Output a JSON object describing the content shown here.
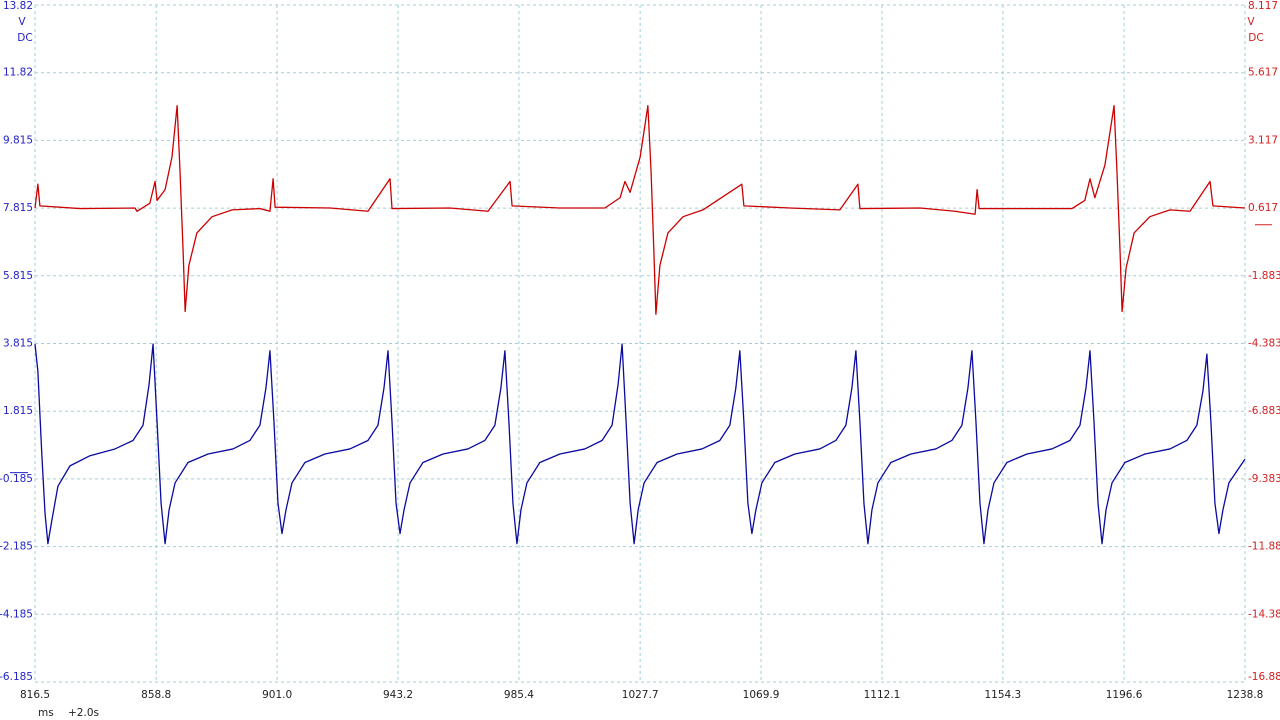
{
  "chart_data": {
    "type": "line",
    "y_unit": "V",
    "y_coupling": "DC",
    "y2_unit": "V",
    "y2_coupling": "DC",
    "x_unit": "ms",
    "x_offset": "+2.0s",
    "xlim": [
      816.5,
      1238.8
    ],
    "xticks": [
      816.5,
      858.8,
      {
        "value": 901,
        "label": "901.0"
      },
      943.2,
      985.4,
      1027.7,
      1069.9,
      1112.1,
      1154.3,
      1196.6,
      1238.8
    ],
    "ylim": [
      -6.185,
      13.815
    ],
    "yticks": [
      {
        "value": 13.815,
        "label": "13.82"
      },
      {
        "value": 11.815,
        "label": "11.82"
      },
      9.815,
      7.815,
      5.815,
      3.815,
      1.815,
      -0.185,
      -2.185,
      -4.185,
      -6.185
    ],
    "y2lim": [
      -16.883,
      8.117
    ],
    "y2ticks": [
      8.117,
      5.617,
      3.117,
      0.617,
      -1.883,
      -4.383,
      -6.883,
      -9.383,
      {
        "value": -11.883,
        "label": "-11.88"
      },
      {
        "value": -14.383,
        "label": "-14.38"
      },
      {
        "value": -16.883,
        "label": "-16.88"
      }
    ],
    "grid": true,
    "axis_colors": {
      "y": "#2323c8",
      "y2": "#d42020"
    },
    "series": [
      {
        "color": "#cc0000",
        "axis": "y2",
        "x": [
          816.5,
          817.5,
          818.2,
          832.2,
          851.4,
          852.1,
          856.6,
          858.4,
          859.1,
          861.9,
          864.3,
          866.1,
          867.1,
          868.2,
          868.9,
          870.2,
          873.0,
          878.3,
          885.3,
          895.0,
          898.5,
          899.6,
          900.3,
          919.5,
          932.7,
          940.4,
          941.1,
          961.3,
          974.6,
          982.3,
          983.0,
          999.7,
          1015.4,
          1020.7,
          1022.4,
          1024.2,
          1027.7,
          1030.4,
          1031.5,
          1032.5,
          1033.2,
          1034.6,
          1037.4,
          1042.7,
          1049.6,
          1063.2,
          1063.9,
          1080.0,
          1097.4,
          1103.7,
          1104.4,
          1125.4,
          1137.6,
          1144.6,
          1145.3,
          1146.0,
          1167.2,
          1178.4,
          1182.9,
          1184.7,
          1186.4,
          1189.9,
          1193.1,
          1194.1,
          1195.2,
          1195.9,
          1197.3,
          1200.1,
          1205.6,
          1212.6,
          1219.6,
          1226.6,
          1227.6,
          1238.8
        ],
        "values": [
          0.62,
          1.5,
          0.7,
          0.6,
          0.62,
          0.5,
          0.8,
          1.6,
          0.9,
          1.3,
          2.5,
          4.4,
          2.0,
          -1.0,
          -3.2,
          -1.5,
          -0.3,
          0.3,
          0.55,
          0.6,
          0.5,
          1.7,
          0.65,
          0.62,
          0.5,
          1.7,
          0.6,
          0.62,
          0.5,
          1.6,
          0.7,
          0.62,
          0.62,
          1.0,
          1.6,
          1.2,
          2.5,
          4.4,
          2.0,
          -1.0,
          -3.3,
          -1.5,
          -0.3,
          0.3,
          0.55,
          1.5,
          0.7,
          0.62,
          0.55,
          1.5,
          0.6,
          0.62,
          0.5,
          0.39,
          1.3,
          0.6,
          0.6,
          0.6,
          0.9,
          1.7,
          1.0,
          2.2,
          4.4,
          2.0,
          -1.0,
          -3.2,
          -1.6,
          -0.3,
          0.3,
          0.55,
          0.5,
          1.6,
          0.7,
          0.62
        ]
      },
      {
        "color": "#0a0aa0",
        "axis": "y",
        "x": [
          816.5,
          817.5,
          818.9,
          820.0,
          821.0,
          822.4,
          824.5,
          828.7,
          835.7,
          844.4,
          850.7,
          854.2,
          856.3,
          857.7,
          859.1,
          860.5,
          861.9,
          863.3,
          865.4,
          869.9,
          876.9,
          885.6,
          891.5,
          895.0,
          897.1,
          898.5,
          899.9,
          901.3,
          902.7,
          904.1,
          906.2,
          910.7,
          917.7,
          926.4,
          932.7,
          936.2,
          938.3,
          939.7,
          941.1,
          942.5,
          943.9,
          945.3,
          947.4,
          951.9,
          958.9,
          967.6,
          973.5,
          977.0,
          979.1,
          980.5,
          981.9,
          983.3,
          984.7,
          986.1,
          988.2,
          992.7,
          999.7,
          1008.4,
          1014.4,
          1017.9,
          1020.0,
          1021.4,
          1022.8,
          1024.2,
          1025.6,
          1027.0,
          1029.1,
          1033.6,
          1040.6,
          1049.3,
          1055.5,
          1059.0,
          1061.1,
          1062.5,
          1063.9,
          1065.3,
          1066.7,
          1068.1,
          1070.2,
          1074.7,
          1081.7,
          1090.4,
          1096.0,
          1099.5,
          1101.6,
          1103.0,
          1104.4,
          1105.8,
          1107.2,
          1108.6,
          1110.7,
          1115.2,
          1122.2,
          1130.9,
          1136.5,
          1140.0,
          1142.1,
          1143.5,
          1144.9,
          1146.3,
          1147.7,
          1149.1,
          1151.2,
          1155.7,
          1162.7,
          1171.4,
          1177.7,
          1181.2,
          1183.3,
          1184.7,
          1186.1,
          1187.5,
          1188.9,
          1190.3,
          1192.4,
          1196.9,
          1203.9,
          1212.6,
          1218.5,
          1222.0,
          1224.1,
          1225.5,
          1226.9,
          1228.3,
          1229.7,
          1231.1,
          1233.2,
          1238.8
        ],
        "values": [
          3.8,
          3.0,
          0.5,
          -1.2,
          -2.1,
          -1.4,
          -0.4,
          0.2,
          0.5,
          0.7,
          0.95,
          1.4,
          2.6,
          3.8,
          1.5,
          -0.9,
          -2.1,
          -1.1,
          -0.3,
          0.3,
          0.55,
          0.7,
          0.95,
          1.4,
          2.5,
          3.6,
          1.5,
          -0.9,
          -1.8,
          -1.1,
          -0.3,
          0.3,
          0.55,
          0.7,
          0.95,
          1.4,
          2.5,
          3.6,
          1.5,
          -0.9,
          -1.8,
          -1.1,
          -0.3,
          0.3,
          0.55,
          0.7,
          0.95,
          1.4,
          2.5,
          3.6,
          1.5,
          -0.9,
          -2.1,
          -1.1,
          -0.3,
          0.3,
          0.55,
          0.7,
          0.95,
          1.4,
          2.6,
          3.8,
          1.5,
          -0.9,
          -2.1,
          -1.1,
          -0.3,
          0.3,
          0.55,
          0.7,
          0.95,
          1.4,
          2.5,
          3.6,
          1.5,
          -0.9,
          -1.8,
          -1.1,
          -0.3,
          0.3,
          0.55,
          0.7,
          0.95,
          1.4,
          2.5,
          3.6,
          1.5,
          -0.9,
          -2.1,
          -1.1,
          -0.3,
          0.3,
          0.55,
          0.7,
          0.95,
          1.4,
          2.5,
          3.6,
          1.5,
          -0.9,
          -2.1,
          -1.1,
          -0.3,
          0.3,
          0.55,
          0.7,
          0.95,
          1.4,
          2.5,
          3.6,
          1.5,
          -0.9,
          -2.1,
          -1.1,
          -0.3,
          0.3,
          0.55,
          0.7,
          0.95,
          1.4,
          2.4,
          3.5,
          1.5,
          -0.9,
          -1.8,
          -1.1,
          -0.3,
          0.4
        ]
      }
    ]
  }
}
